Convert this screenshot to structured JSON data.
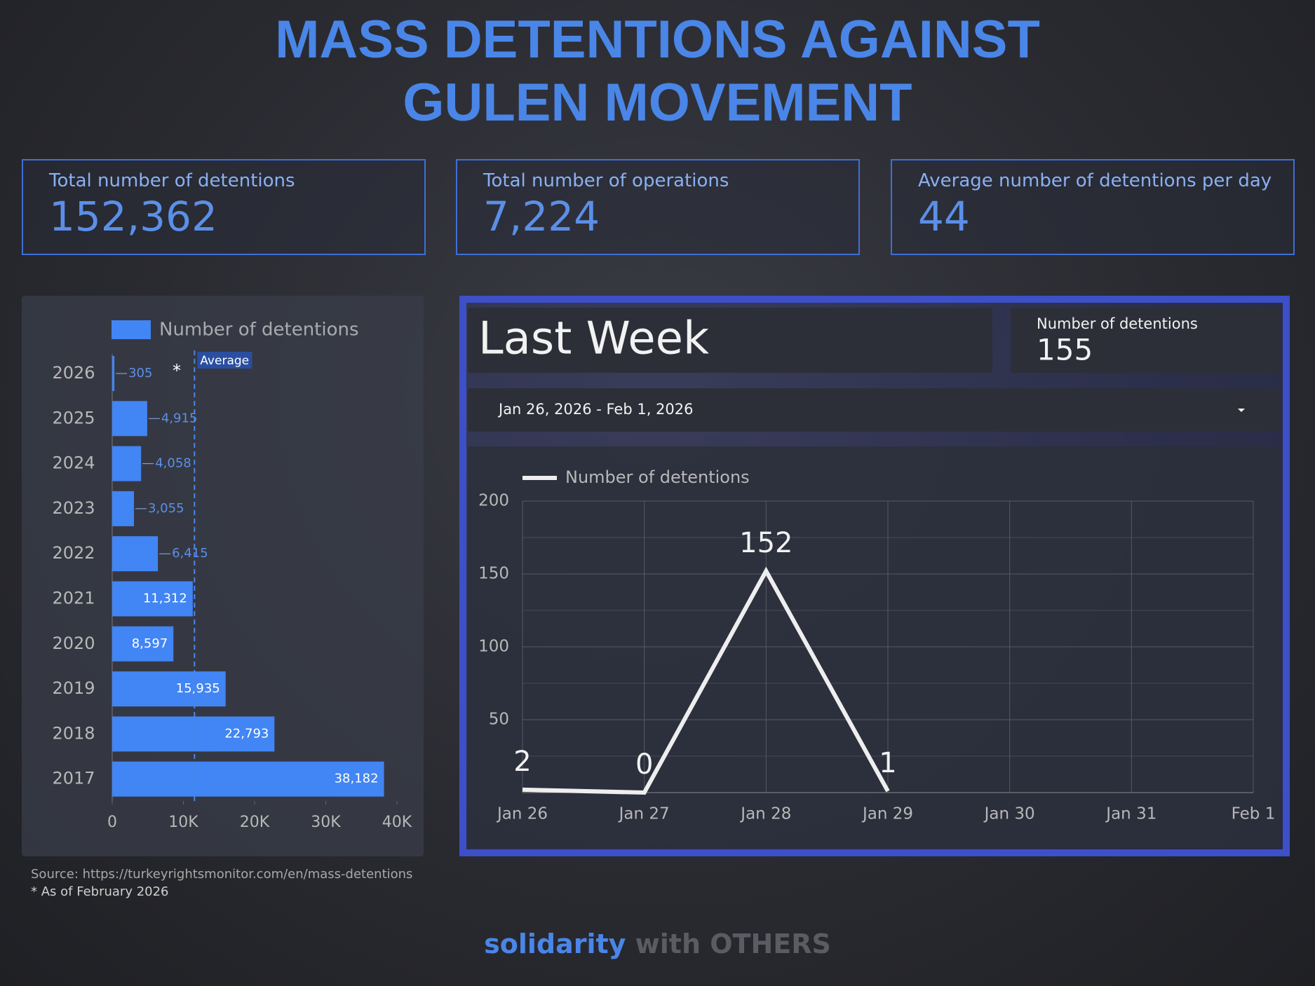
{
  "title_lines": [
    "MASS DETENTIONS AGAINST",
    "GULEN MOVEMENT"
  ],
  "kpis": [
    {
      "label": "Total number of detentions",
      "value": "152,362"
    },
    {
      "label": "Total number of operations",
      "value": "7,224"
    },
    {
      "label": "Average number of detentions per day",
      "value": "44"
    }
  ],
  "last_week": {
    "title": "Last Week",
    "kpi_label": "Number of detentions",
    "kpi_value": "155",
    "date_range": "Jan 26, 2026 - Feb 1, 2026"
  },
  "chart_data": [
    {
      "type": "hbar",
      "categories": [
        "2026",
        "2025",
        "2024",
        "2023",
        "2022",
        "2021",
        "2020",
        "2019",
        "2018",
        "2017"
      ],
      "series": [
        {
          "name": "Number of detentions",
          "color": "#4285f4",
          "values": [
            305,
            4915,
            4058,
            3055,
            6415,
            11312,
            8597,
            15935,
            22793,
            38182
          ],
          "value_labels": [
            "305",
            "4,915",
            "4,058",
            "3,055",
            "6,415",
            "11,312",
            "8,597",
            "15,935",
            "22,793",
            "38,182"
          ]
        }
      ],
      "xlim": [
        0,
        40000
      ],
      "xticks": [
        0,
        {
          "value": 10000,
          "label": "10K"
        },
        {
          "value": 20000,
          "label": "20K"
        },
        {
          "value": 30000,
          "label": "30K"
        },
        {
          "value": 40000,
          "label": "40K"
        }
      ],
      "average": {
        "label": "Average",
        "value": 11557
      },
      "annotation": "*"
    },
    {
      "type": "line",
      "categories": [
        "Jan 26",
        "Jan 27",
        "Jan 28",
        "Jan 29",
        "Jan 30",
        "Jan 31",
        "Feb 1"
      ],
      "series": [
        {
          "name": "Number of detentions",
          "color": "#eeeeee",
          "values": [
            2,
            0,
            152,
            1,
            null,
            null,
            null
          ]
        }
      ],
      "ylim": [
        0,
        200
      ],
      "yticks": [
        50,
        100,
        150,
        200
      ],
      "grid": true
    }
  ],
  "source": "Source: https://turkeyrightsmonitor.com/en/mass-detentions",
  "note": "* As of February 2026",
  "footer": {
    "brand": "solidarity",
    "rest": "with OTHERS"
  }
}
